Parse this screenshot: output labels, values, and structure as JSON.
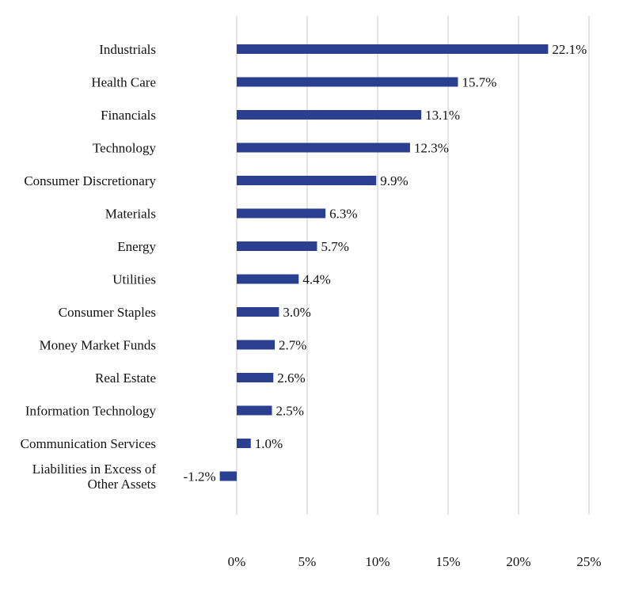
{
  "chart_data": {
    "type": "bar",
    "orientation": "horizontal",
    "title": "",
    "xlabel": "",
    "ylabel": "",
    "categories": [
      "Industrials",
      "Health Care",
      "Financials",
      "Technology",
      "Consumer Discretionary",
      "Materials",
      "Energy",
      "Utilities",
      "Consumer Staples",
      "Money Market Funds",
      "Real Estate",
      "Information Technology",
      "Communication Services",
      "Liabilities in Excess of Other Assets"
    ],
    "category_lines": [
      [
        "Industrials"
      ],
      [
        "Health Care"
      ],
      [
        "Financials"
      ],
      [
        "Technology"
      ],
      [
        "Consumer Discretionary"
      ],
      [
        "Materials"
      ],
      [
        "Energy"
      ],
      [
        "Utilities"
      ],
      [
        "Consumer Staples"
      ],
      [
        "Money Market Funds"
      ],
      [
        "Real Estate"
      ],
      [
        "Information Technology"
      ],
      [
        "Communication Services"
      ],
      [
        "Liabilities in Excess of",
        "Other Assets"
      ]
    ],
    "values": [
      22.1,
      15.7,
      13.1,
      12.3,
      9.9,
      6.3,
      5.7,
      4.4,
      3.0,
      2.7,
      2.6,
      2.5,
      1.0,
      -1.2
    ],
    "value_labels": [
      "22.1%",
      "15.7%",
      "13.1%",
      "12.3%",
      "9.9%",
      "6.3%",
      "5.7%",
      "4.4%",
      "3.0%",
      "2.7%",
      "2.6%",
      "2.5%",
      "1.0%",
      "-1.2%"
    ],
    "xlim": [
      0,
      25
    ],
    "xticks": [
      0,
      5,
      10,
      15,
      20,
      25
    ],
    "xtick_labels": [
      "0%",
      "5%",
      "10%",
      "15%",
      "20%",
      "25%"
    ],
    "grid": true,
    "legend": "none",
    "colors": {
      "bar": "#2a3f8f",
      "grid": "#d9d9d9",
      "text": "#111111"
    }
  }
}
